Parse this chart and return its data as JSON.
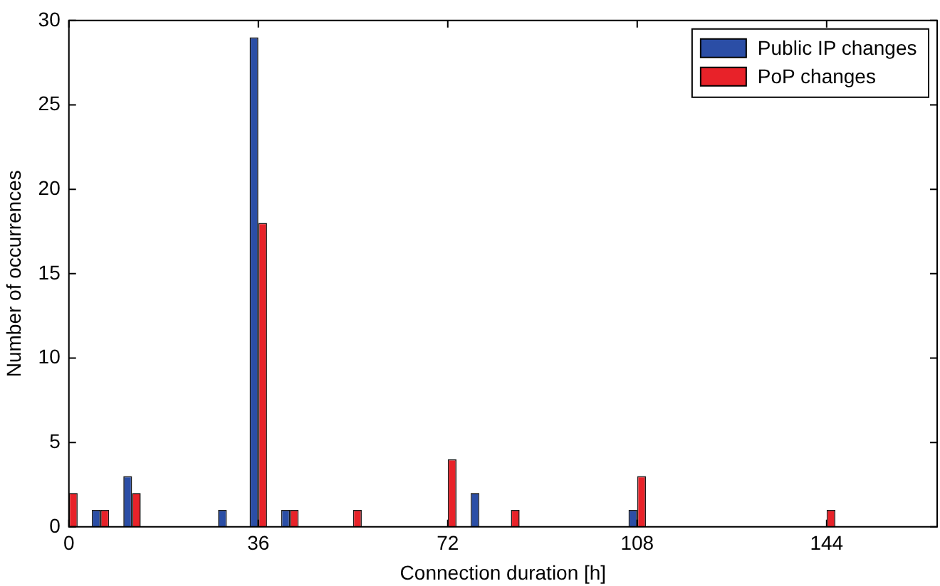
{
  "chart_data": {
    "type": "bar",
    "xlabel": "Connection duration [h]",
    "ylabel": "Number of occurrences",
    "x": [
      0,
      6,
      12,
      18,
      24,
      30,
      36,
      42,
      48,
      54,
      60,
      66,
      72,
      78,
      84,
      90,
      96,
      102,
      108,
      114,
      120,
      126,
      132,
      138,
      144,
      150,
      156,
      162
    ],
    "series": [
      {
        "name": "Public IP changes",
        "color": "#2b4ea6",
        "values": [
          0,
          1,
          3,
          0,
          0,
          1,
          29,
          1,
          0,
          0,
          0,
          0,
          0,
          2,
          0,
          0,
          0,
          0,
          1,
          0,
          0,
          0,
          0,
          0,
          0,
          0,
          0,
          0
        ]
      },
      {
        "name": "PoP changes",
        "color": "#e82229",
        "values": [
          2,
          1,
          2,
          0,
          0,
          0,
          18,
          1,
          0,
          1,
          0,
          0,
          4,
          0,
          1,
          0,
          0,
          0,
          3,
          0,
          0,
          0,
          0,
          0,
          1,
          0,
          0,
          0
        ]
      }
    ],
    "xlim": [
      0,
      165
    ],
    "xticks": [
      0,
      36,
      72,
      108,
      144
    ],
    "ylim": [
      0,
      30
    ],
    "yticks": [
      0,
      5,
      10,
      15,
      20,
      25,
      30
    ],
    "grid": false,
    "legend": "top right"
  }
}
